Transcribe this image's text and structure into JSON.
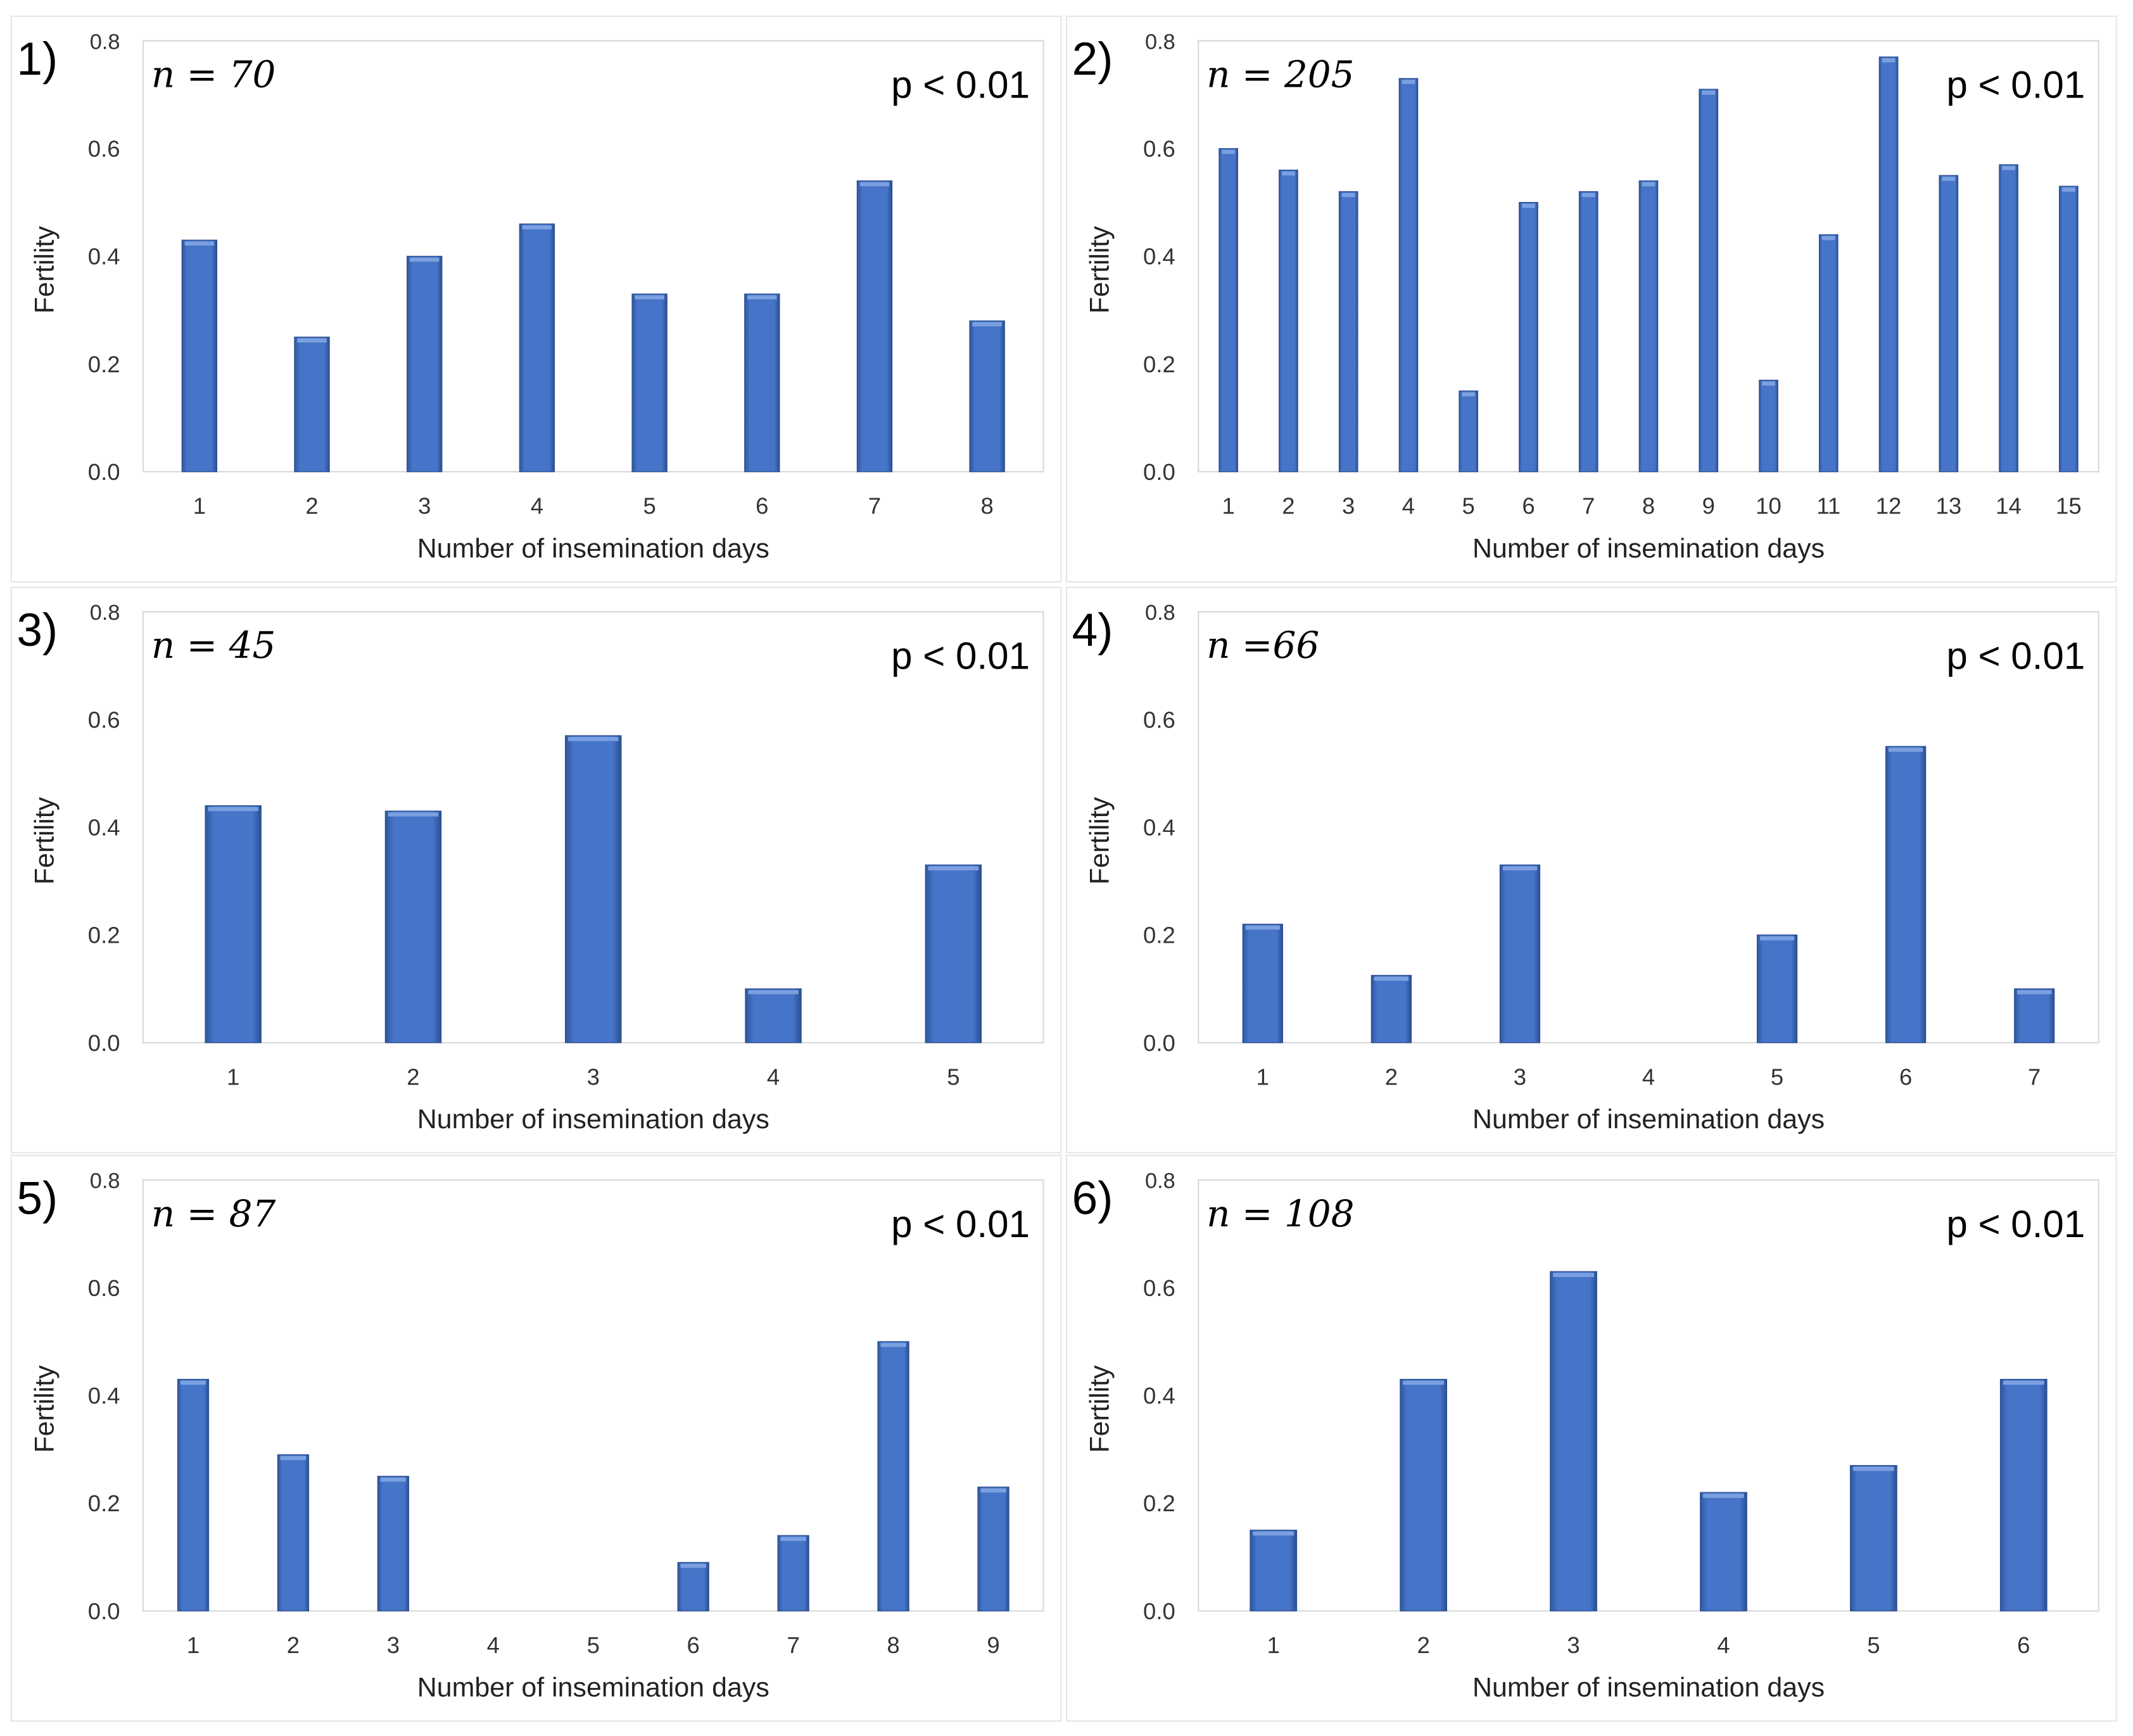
{
  "shared": {
    "ylabel": "Fertility",
    "xlabel": "Number of insemination days",
    "yticks": [
      "0.0",
      "0.2",
      "0.4",
      "0.6",
      "0.8"
    ],
    "ylim": [
      0,
      0.8
    ],
    "bar_color": "#4472C4",
    "p_label": "p < 0.01"
  },
  "chart_data": [
    {
      "type": "bar",
      "panel": "1)",
      "n_label": "n = 70",
      "p_label": "p < 0.01",
      "xlabel": "Number of insemination days",
      "ylabel": "Fertility",
      "ylim": [
        0,
        0.8
      ],
      "categories": [
        "1",
        "2",
        "3",
        "4",
        "5",
        "6",
        "7",
        "8"
      ],
      "values": [
        0.43,
        0.25,
        0.4,
        0.46,
        0.33,
        0.33,
        0.54,
        0.28
      ]
    },
    {
      "type": "bar",
      "panel": "2)",
      "n_label": "n = 205",
      "p_label": "p < 0.01",
      "xlabel": "Number of insemination days",
      "ylabel": "Fertility",
      "ylim": [
        0,
        0.8
      ],
      "categories": [
        "1",
        "2",
        "3",
        "4",
        "5",
        "6",
        "7",
        "8",
        "9",
        "10",
        "11",
        "12",
        "13",
        "14",
        "15"
      ],
      "values": [
        0.6,
        0.56,
        0.52,
        0.73,
        0.15,
        0.5,
        0.52,
        0.54,
        0.71,
        0.17,
        0.44,
        0.77,
        0.55,
        0.57,
        0.53
      ]
    },
    {
      "type": "bar",
      "panel": "3)",
      "n_label": "n = 45",
      "p_label": "p < 0.01",
      "xlabel": "Number of insemination days",
      "ylabel": "Fertility",
      "ylim": [
        0,
        0.8
      ],
      "categories": [
        "1",
        "2",
        "3",
        "4",
        "5"
      ],
      "values": [
        0.44,
        0.43,
        0.57,
        0.1,
        0.33
      ]
    },
    {
      "type": "bar",
      "panel": "4)",
      "n_label": "n =66",
      "p_label": "p < 0.01",
      "xlabel": "Number of insemination days",
      "ylabel": "Fertility",
      "ylim": [
        0,
        0.8
      ],
      "categories": [
        "1",
        "2",
        "3",
        "4",
        "5",
        "6",
        "7"
      ],
      "values": [
        0.22,
        0.125,
        0.33,
        0,
        0.2,
        0.55,
        0.1
      ]
    },
    {
      "type": "bar",
      "panel": "5)",
      "n_label": "n = 87",
      "p_label": "p < 0.01",
      "xlabel": "Number of insemination days",
      "ylabel": "Fertility",
      "ylim": [
        0,
        0.8
      ],
      "categories": [
        "1",
        "2",
        "3",
        "4",
        "5",
        "6",
        "7",
        "8",
        "9"
      ],
      "values": [
        0.43,
        0.29,
        0.25,
        0,
        0,
        0.09,
        0.14,
        0.5,
        0.23
      ]
    },
    {
      "type": "bar",
      "panel": "6)",
      "n_label": "n = 108",
      "p_label": "p < 0.01",
      "xlabel": "Number of insemination days",
      "ylabel": "Fertility",
      "ylim": [
        0,
        0.8
      ],
      "categories": [
        "1",
        "2",
        "3",
        "4",
        "5",
        "6"
      ],
      "values": [
        0.15,
        0.43,
        0.63,
        0.22,
        0.27,
        0.43
      ]
    }
  ]
}
